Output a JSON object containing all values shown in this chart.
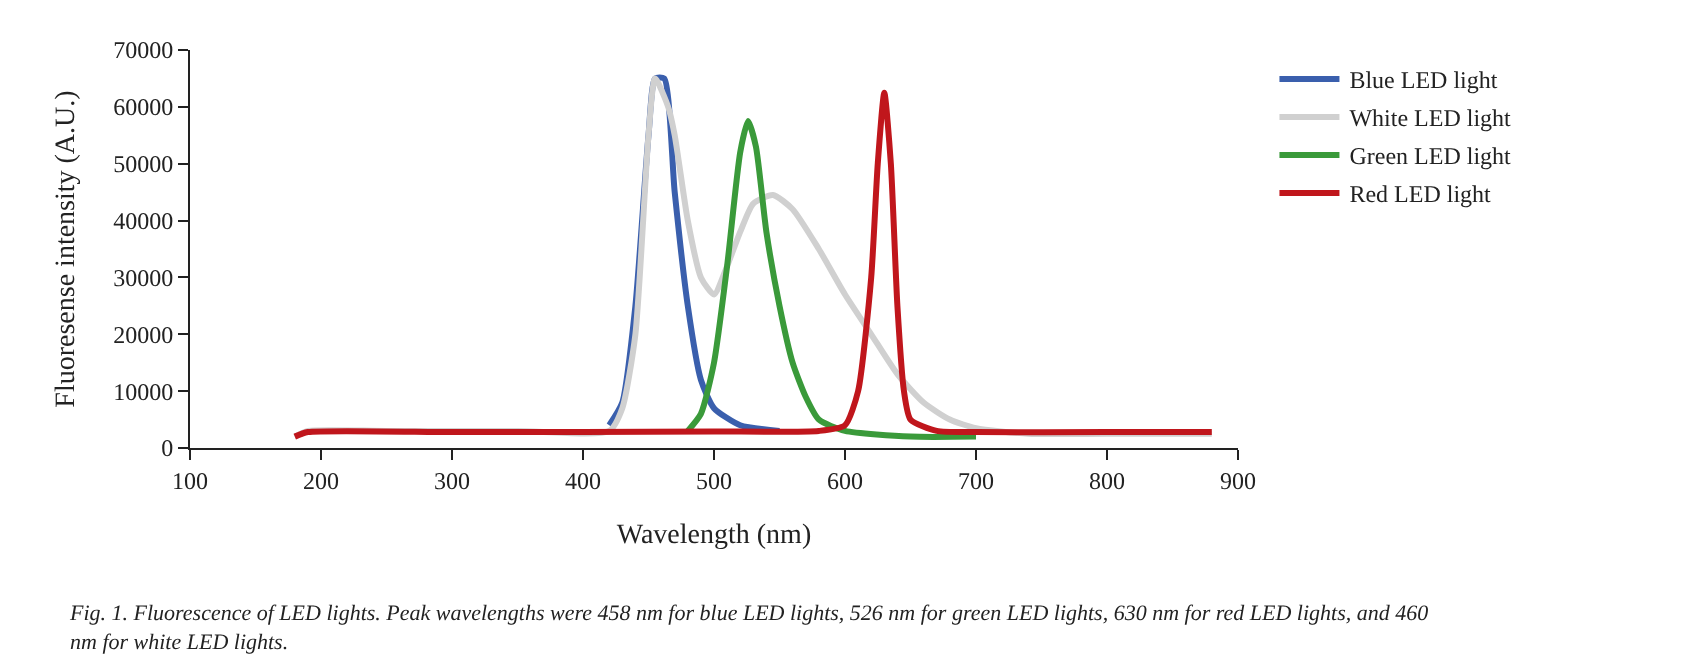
{
  "chart_data": {
    "type": "line",
    "xlabel": "Wavelength (nm)",
    "ylabel": "Fluoresense intensity (A.U.)",
    "xlim": [
      100,
      900
    ],
    "xticks": [
      100,
      200,
      300,
      400,
      500,
      600,
      700,
      800,
      900
    ],
    "ylim": [
      0,
      70000
    ],
    "yticks": [
      0,
      10000,
      20000,
      30000,
      40000,
      50000,
      60000,
      70000
    ],
    "legend": "top right",
    "marker": "none",
    "line_style": "solid",
    "annotations": [
      "Fig. 1. Fluorescence of LED lights. Peak wavelengths were 458 nm for blue LED lights, 526 nm for green LED lights, 630 nm for red LED lights, and 460 nm for white LED lights."
    ],
    "series": [
      {
        "name": "Blue LED light",
        "color": "#3a5fad",
        "x": [
          420,
          430,
          440,
          450,
          455,
          462,
          470,
          480,
          490,
          500,
          520,
          550
        ],
        "values": [
          4000,
          8000,
          25000,
          55000,
          65000,
          65000,
          45000,
          25000,
          12000,
          7000,
          4000,
          3000
        ]
      },
      {
        "name": "White LED light",
        "color": "#d0d0d0",
        "x": [
          180,
          190,
          250,
          350,
          420,
          430,
          440,
          450,
          455,
          465,
          470,
          480,
          490,
          500,
          510,
          520,
          530,
          545,
          560,
          580,
          600,
          620,
          640,
          660,
          680,
          700,
          740,
          800,
          880
        ],
        "values": [
          2000,
          3000,
          3000,
          3000,
          3000,
          7000,
          20000,
          55000,
          65000,
          60000,
          55000,
          40000,
          30000,
          27000,
          32000,
          38000,
          43000,
          44500,
          42000,
          35000,
          27000,
          20000,
          13000,
          8000,
          5000,
          3500,
          2500,
          2500,
          2500
        ]
      },
      {
        "name": "Green LED light",
        "color": "#3a9a3a",
        "x": [
          480,
          490,
          500,
          510,
          520,
          526,
          532,
          540,
          550,
          560,
          570,
          580,
          600,
          650,
          700
        ],
        "values": [
          3000,
          6000,
          15000,
          32000,
          52000,
          57500,
          53000,
          38000,
          25000,
          15000,
          9000,
          5000,
          3000,
          2000,
          2000
        ]
      },
      {
        "name": "Red LED light",
        "color": "#c0161c",
        "x": [
          180,
          190,
          300,
          400,
          500,
          580,
          600,
          610,
          620,
          625,
          630,
          635,
          640,
          645,
          650,
          670,
          700,
          800,
          880
        ],
        "values": [
          2000,
          2800,
          2800,
          2800,
          2900,
          3000,
          4000,
          10000,
          30000,
          50000,
          62500,
          50000,
          25000,
          10000,
          5000,
          3000,
          2800,
          2800,
          2800
        ]
      }
    ]
  }
}
